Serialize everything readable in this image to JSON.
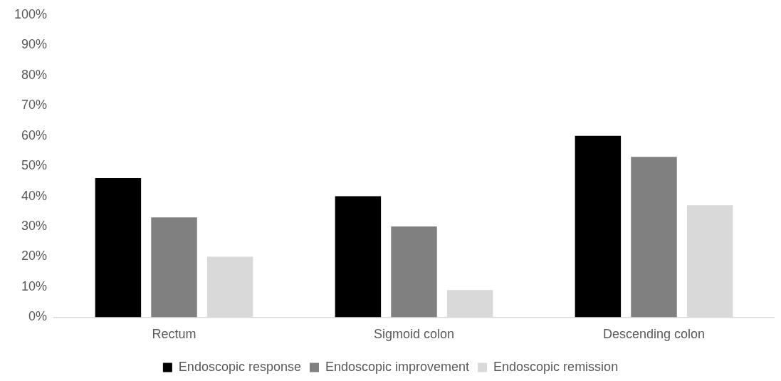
{
  "chart_data": {
    "type": "bar",
    "categories": [
      "Rectum",
      "Sigmoid colon",
      "Descending colon"
    ],
    "series": [
      {
        "name": "Endoscopic response",
        "color": "#000000",
        "values": [
          46,
          40,
          60
        ]
      },
      {
        "name": "Endoscopic improvement",
        "color": "#808080",
        "values": [
          33,
          30,
          53
        ]
      },
      {
        "name": "Endoscopic remission",
        "color": "#d9d9d9",
        "values": [
          20,
          9,
          37
        ]
      }
    ],
    "ylim": [
      0,
      100
    ],
    "yticks": [
      {
        "value": 0,
        "label": "0%"
      },
      {
        "value": 10,
        "label": "10%"
      },
      {
        "value": 20,
        "label": "20%"
      },
      {
        "value": 30,
        "label": "30%"
      },
      {
        "value": 40,
        "label": "40%"
      },
      {
        "value": 50,
        "label": "50%"
      },
      {
        "value": 60,
        "label": "60%"
      },
      {
        "value": 70,
        "label": "70%"
      },
      {
        "value": 80,
        "label": "80%"
      },
      {
        "value": 90,
        "label": "90%"
      },
      {
        "value": 100,
        "label": "100%"
      }
    ],
    "grid": false,
    "legend": "bottom"
  }
}
